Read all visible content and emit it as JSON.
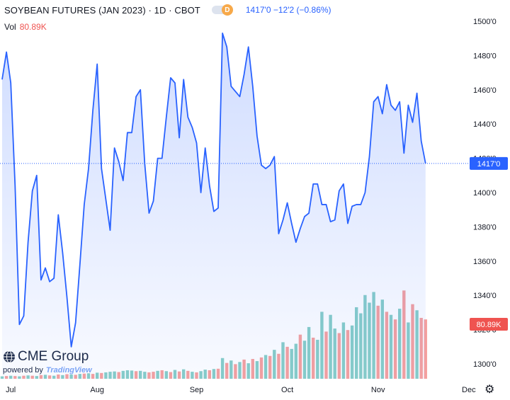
{
  "header": {
    "title": "SOYBEAN FUTURES (JAN 2023) · 1D · CBOT",
    "badge": "D",
    "price_change": "1417'0  −12'2 (−0.86%)"
  },
  "volume": {
    "label": "Vol",
    "value": "80.89K"
  },
  "logo": {
    "brand": "CME Group",
    "powered_by": "powered by",
    "tradingview": "TradingView"
  },
  "current_price_label": "1417'0",
  "current_volume_label": "80.89K",
  "colors": {
    "line": "#2962ff",
    "fill": "#2962ff",
    "vol_up": "#26a69a",
    "vol_down": "#ef5350",
    "price_tag": "#2962ff",
    "vol_tag": "#ef5350"
  },
  "chart_data": {
    "type": "area",
    "price_range": [
      1292,
      1504
    ],
    "y_ticks": [
      {
        "v": 1300,
        "label": "1300'0"
      },
      {
        "v": 1320,
        "label": "1320'0"
      },
      {
        "v": 1340,
        "label": "1340'0"
      },
      {
        "v": 1360,
        "label": "1360'0"
      },
      {
        "v": 1380,
        "label": "1380'0"
      },
      {
        "v": 1400,
        "label": "1400'0"
      },
      {
        "v": 1420,
        "label": "1420'0"
      },
      {
        "v": 1440,
        "label": "1440'0"
      },
      {
        "v": 1460,
        "label": "1460'0"
      },
      {
        "v": 1480,
        "label": "1480'0"
      },
      {
        "v": 1500,
        "label": "1500'0"
      }
    ],
    "x_ticks": [
      {
        "i": 2,
        "label": "Jul"
      },
      {
        "i": 22,
        "label": "Aug"
      },
      {
        "i": 45,
        "label": "Sep"
      },
      {
        "i": 66,
        "label": "Oct"
      },
      {
        "i": 87,
        "label": "Nov"
      },
      {
        "i": 108,
        "label": "Dec"
      }
    ],
    "last_price": 1417,
    "close": [
      1466,
      1482,
      1464,
      1404,
      1323,
      1328,
      1371,
      1401,
      1410,
      1349,
      1356,
      1348,
      1350,
      1387,
      1365,
      1339,
      1310,
      1324,
      1358,
      1393,
      1414,
      1448,
      1475,
      1414,
      1396,
      1378,
      1426,
      1418,
      1407,
      1435,
      1435,
      1456,
      1460,
      1417,
      1388,
      1395,
      1420,
      1420,
      1444,
      1467,
      1464,
      1432,
      1466,
      1444,
      1438,
      1429,
      1400,
      1426,
      1404,
      1389,
      1391,
      1493,
      1485,
      1462,
      1459,
      1456,
      1469,
      1485,
      1462,
      1433,
      1416,
      1414,
      1416,
      1421,
      1376,
      1384,
      1394,
      1382,
      1371,
      1379,
      1386,
      1388,
      1405,
      1405,
      1393,
      1393,
      1383,
      1384,
      1401,
      1405,
      1382,
      1392,
      1393,
      1393,
      1400,
      1421,
      1453,
      1456,
      1446,
      1463,
      1451,
      1448,
      1453,
      1423,
      1451,
      1441,
      1458,
      1430,
      1417
    ],
    "volume": [
      {
        "v": 0.8,
        "up": true
      },
      {
        "v": 0.9,
        "up": false
      },
      {
        "v": 1.0,
        "up": true
      },
      {
        "v": 0.9,
        "up": false
      },
      {
        "v": 0.8,
        "up": true
      },
      {
        "v": 1.0,
        "up": false
      },
      {
        "v": 1.1,
        "up": true
      },
      {
        "v": 1.0,
        "up": false
      },
      {
        "v": 0.9,
        "up": true
      },
      {
        "v": 1.2,
        "up": false
      },
      {
        "v": 1.3,
        "up": true
      },
      {
        "v": 1.1,
        "up": false
      },
      {
        "v": 1.0,
        "up": true
      },
      {
        "v": 1.4,
        "up": false
      },
      {
        "v": 1.2,
        "up": true
      },
      {
        "v": 1.5,
        "up": false
      },
      {
        "v": 1.4,
        "up": true
      },
      {
        "v": 1.3,
        "up": false
      },
      {
        "v": 1.6,
        "up": true
      },
      {
        "v": 1.7,
        "up": false
      },
      {
        "v": 1.8,
        "up": true
      },
      {
        "v": 1.6,
        "up": false
      },
      {
        "v": 2.0,
        "up": true
      },
      {
        "v": 1.9,
        "up": false
      },
      {
        "v": 2.1,
        "up": true
      },
      {
        "v": 2.3,
        "up": true
      },
      {
        "v": 2.4,
        "up": true
      },
      {
        "v": 2.2,
        "up": false
      },
      {
        "v": 2.6,
        "up": true
      },
      {
        "v": 2.8,
        "up": true
      },
      {
        "v": 2.7,
        "up": true
      },
      {
        "v": 2.5,
        "up": false
      },
      {
        "v": 2.6,
        "up": true
      },
      {
        "v": 2.3,
        "up": true
      },
      {
        "v": 2.1,
        "up": false
      },
      {
        "v": 2.3,
        "up": false
      },
      {
        "v": 2.6,
        "up": true
      },
      {
        "v": 2.8,
        "up": false
      },
      {
        "v": 2.5,
        "up": true
      },
      {
        "v": 2.2,
        "up": false
      },
      {
        "v": 2.9,
        "up": true
      },
      {
        "v": 2.4,
        "up": false
      },
      {
        "v": 3.1,
        "up": true
      },
      {
        "v": 2.6,
        "up": false
      },
      {
        "v": 2.3,
        "up": true
      },
      {
        "v": 2.1,
        "up": false
      },
      {
        "v": 2.5,
        "up": true
      },
      {
        "v": 3.0,
        "up": true
      },
      {
        "v": 2.8,
        "up": false
      },
      {
        "v": 3.2,
        "up": true
      },
      {
        "v": 3.3,
        "up": false
      },
      {
        "v": 6.8,
        "up": true
      },
      {
        "v": 5.2,
        "up": false
      },
      {
        "v": 6.0,
        "up": true
      },
      {
        "v": 4.8,
        "up": false
      },
      {
        "v": 5.5,
        "up": true
      },
      {
        "v": 6.3,
        "up": false
      },
      {
        "v": 5.1,
        "up": true
      },
      {
        "v": 6.5,
        "up": false
      },
      {
        "v": 5.8,
        "up": true
      },
      {
        "v": 7.0,
        "up": false
      },
      {
        "v": 7.8,
        "up": true
      },
      {
        "v": 7.5,
        "up": false
      },
      {
        "v": 9.5,
        "up": true
      },
      {
        "v": 8.2,
        "up": false
      },
      {
        "v": 12.0,
        "up": true
      },
      {
        "v": 10.5,
        "up": false
      },
      {
        "v": 9.8,
        "up": true
      },
      {
        "v": 11.5,
        "up": true
      },
      {
        "v": 14.5,
        "up": false
      },
      {
        "v": 12.5,
        "up": true
      },
      {
        "v": 17.0,
        "up": true
      },
      {
        "v": 13.5,
        "up": false
      },
      {
        "v": 12.8,
        "up": true
      },
      {
        "v": 22.0,
        "up": true
      },
      {
        "v": 15.5,
        "up": false
      },
      {
        "v": 21.0,
        "up": true
      },
      {
        "v": 16.5,
        "up": true
      },
      {
        "v": 15.0,
        "up": false
      },
      {
        "v": 18.5,
        "up": true
      },
      {
        "v": 16.0,
        "up": false
      },
      {
        "v": 17.5,
        "up": true
      },
      {
        "v": 23.5,
        "up": true
      },
      {
        "v": 21.5,
        "up": true
      },
      {
        "v": 27.5,
        "up": true
      },
      {
        "v": 25.0,
        "up": true
      },
      {
        "v": 28.5,
        "up": true
      },
      {
        "v": 24.0,
        "up": false
      },
      {
        "v": 26.0,
        "up": true
      },
      {
        "v": 22.0,
        "up": false
      },
      {
        "v": 21.0,
        "up": true
      },
      {
        "v": 19.5,
        "up": false
      },
      {
        "v": 23.0,
        "up": true
      },
      {
        "v": 29.0,
        "up": false
      },
      {
        "v": 18.5,
        "up": true
      },
      {
        "v": 24.5,
        "up": false
      },
      {
        "v": 22.5,
        "up": true
      },
      {
        "v": 20.0,
        "up": false
      },
      {
        "v": 19.5,
        "up": false
      }
    ]
  }
}
